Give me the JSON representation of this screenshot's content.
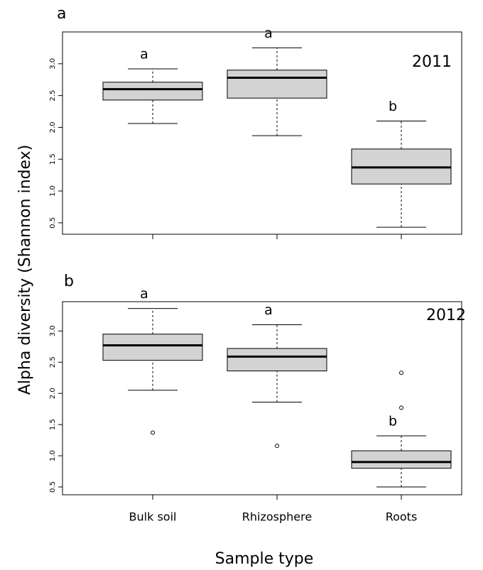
{
  "chart_data": [
    {
      "type": "box",
      "panel": "a",
      "annotation": "2011",
      "y_label": "Alpha diversity (Shannon index)",
      "categories": [
        null,
        null,
        null
      ],
      "ylim": [
        0.32,
        3.5
      ],
      "yticks": [
        0.5,
        {
          "value": 1,
          "label": "1.0"
        },
        1.5,
        {
          "value": 2,
          "label": "2.0"
        },
        2.5,
        {
          "value": 3,
          "label": "3.0"
        }
      ],
      "color": "#d3d3d3",
      "boxes": [
        {
          "min": 2.06,
          "q1": 2.43,
          "median": 2.6,
          "q3": 2.71,
          "max": 2.92,
          "outliers": [],
          "letter": "a"
        },
        {
          "min": 1.87,
          "q1": 2.46,
          "median": 2.78,
          "q3": 2.9,
          "max": 3.25,
          "outliers": [],
          "letter": "a"
        },
        {
          "min": 0.43,
          "q1": 1.11,
          "median": 1.37,
          "q3": 1.66,
          "max": 2.1,
          "outliers": [],
          "letter": "b"
        }
      ]
    },
    {
      "type": "box",
      "panel": "b",
      "annotation": "2012",
      "x_label": "Sample type",
      "categories": [
        "Bulk soil",
        "Rhizosphere",
        "Roots"
      ],
      "ylim": [
        0.375,
        3.47
      ],
      "yticks": [
        0.5,
        {
          "value": 1,
          "label": "1.0"
        },
        1.5,
        {
          "value": 2,
          "label": "2.0"
        },
        2.5,
        {
          "value": 3,
          "label": "3.0"
        }
      ],
      "color": "#d3d3d3",
      "boxes": [
        {
          "min": 2.05,
          "q1": 2.53,
          "median": 2.77,
          "q3": 2.95,
          "max": 3.36,
          "outliers": [
            1.37
          ],
          "letter": "a"
        },
        {
          "min": 1.86,
          "q1": 2.36,
          "median": 2.59,
          "q3": 2.72,
          "max": 3.1,
          "outliers": [
            1.16
          ],
          "letter": "a"
        },
        {
          "min": 0.5,
          "q1": 0.8,
          "median": 0.9,
          "q3": 1.08,
          "max": 1.32,
          "outliers": [
            1.77,
            2.33
          ],
          "letter": "b"
        }
      ]
    }
  ]
}
